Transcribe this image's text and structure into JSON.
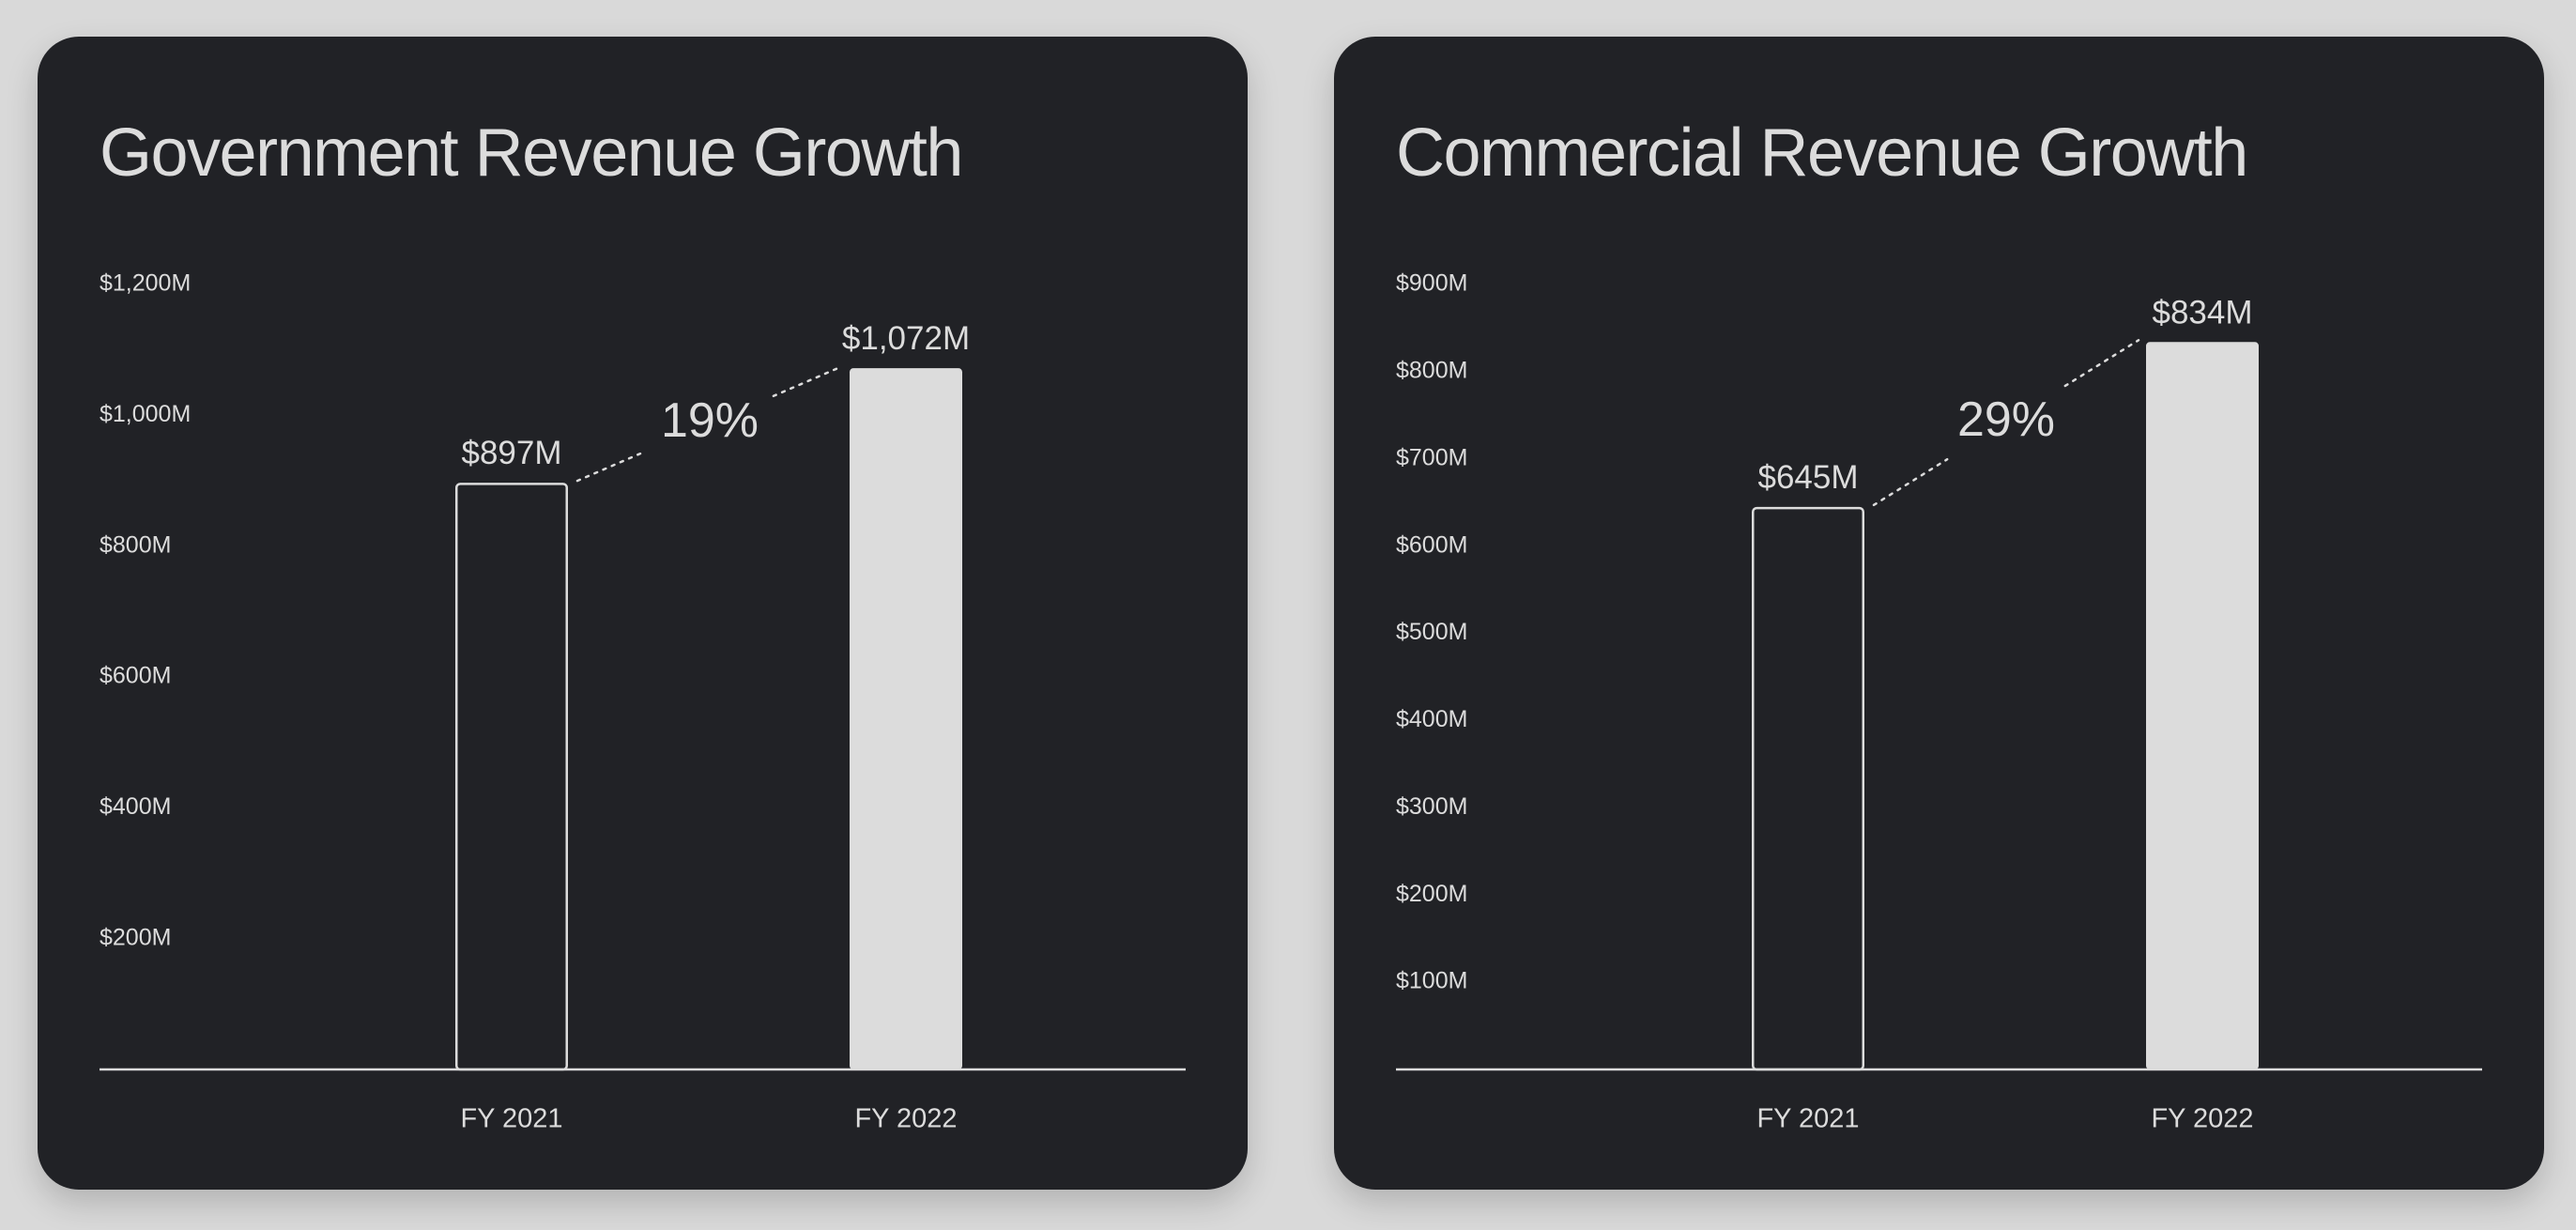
{
  "colors": {
    "page_background": "#d9d9d9",
    "panel_background": "#212226",
    "foreground": "#dcdcdc"
  },
  "panels": [
    {
      "title": "Government Revenue Growth",
      "growth_label": "19%"
    },
    {
      "title": "Commercial Revenue Growth",
      "growth_label": "29%"
    }
  ],
  "chart_data": [
    {
      "type": "bar",
      "title": "Government Revenue Growth",
      "xlabel": "",
      "ylabel": "",
      "categories": [
        "FY 2021",
        "FY 2022"
      ],
      "values": [
        897,
        1072
      ],
      "value_labels": [
        "$897M",
        "$1,072M"
      ],
      "bar_styles": [
        "outline",
        "filled"
      ],
      "ylim": [
        0,
        1200
      ],
      "yticks": [
        200,
        400,
        600,
        800,
        1000,
        1200
      ],
      "ytick_labels": [
        "$200M",
        "$400M",
        "$600M",
        "$800M",
        "$1,000M",
        "$1,200M"
      ],
      "growth_annotation": "19%",
      "grid": false,
      "legend": "none"
    },
    {
      "type": "bar",
      "title": "Commercial Revenue Growth",
      "xlabel": "",
      "ylabel": "",
      "categories": [
        "FY 2021",
        "FY 2022"
      ],
      "values": [
        645,
        834
      ],
      "value_labels": [
        "$645M",
        "$834M"
      ],
      "bar_styles": [
        "outline",
        "filled"
      ],
      "ylim": [
        0,
        900
      ],
      "yticks": [
        100,
        200,
        300,
        400,
        500,
        600,
        700,
        800,
        900
      ],
      "ytick_labels": [
        "$100M",
        "$200M",
        "$300M",
        "$400M",
        "$500M",
        "$600M",
        "$700M",
        "$800M",
        "$900M"
      ],
      "growth_annotation": "29%",
      "grid": false,
      "legend": "none"
    }
  ]
}
